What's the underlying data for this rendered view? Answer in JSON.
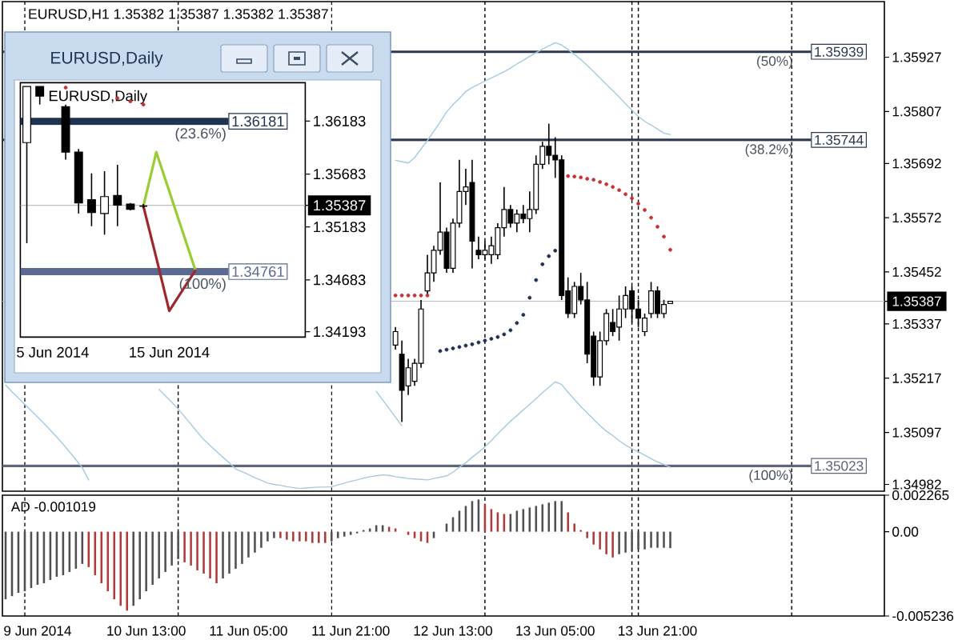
{
  "chart_data": [
    {
      "type": "candlestick",
      "title": "EURUSD,H1 1.35382 1.35387 1.35382 1.35387",
      "categories": [
        null,
        null,
        null,
        null,
        null,
        null,
        null,
        null,
        null,
        null,
        null,
        null,
        null,
        null,
        null,
        null,
        null,
        null,
        null,
        null,
        null,
        null,
        null,
        null,
        null,
        null,
        null,
        null,
        null,
        null,
        null,
        null,
        null,
        null,
        null,
        null,
        null,
        null,
        null,
        null,
        null,
        null,
        null,
        null,
        null,
        null,
        null,
        null,
        null,
        null,
        null,
        null,
        null,
        null,
        null,
        null,
        null,
        null,
        null,
        null,
        null,
        null,
        null,
        null,
        null,
        null,
        null,
        null,
        null,
        null,
        null,
        null,
        null,
        null,
        null,
        null,
        null,
        null,
        null,
        null,
        null,
        null,
        null,
        null,
        null,
        null,
        null,
        null,
        null,
        null,
        null,
        null,
        null,
        null,
        null,
        null,
        null,
        null,
        null,
        null,
        null,
        null,
        null,
        null,
        null,
        null,
        null,
        null,
        null,
        null,
        null,
        null,
        null,
        null,
        null,
        null,
        null,
        null,
        null,
        null,
        null,
        null,
        null,
        null,
        null,
        null,
        null,
        null,
        null,
        null,
        null,
        null,
        null,
        null,
        null,
        null,
        null,
        null
      ],
      "ohlc": [
        null,
        null,
        null,
        null,
        null,
        null,
        null,
        null,
        null,
        null,
        null,
        null,
        null,
        null,
        null,
        null,
        null,
        null,
        null,
        null,
        null,
        null,
        null,
        null,
        null,
        null,
        null,
        null,
        null,
        null,
        null,
        null,
        null,
        null,
        null,
        null,
        null,
        null,
        null,
        null,
        null,
        null,
        null,
        null,
        null,
        null,
        null,
        null,
        null,
        null,
        null,
        null,
        null,
        null,
        null,
        null,
        null,
        null,
        null,
        null,
        null,
        [
          1.3529,
          1.3533,
          1.3528,
          1.3532
        ],
        [
          1.3527,
          1.353,
          1.3512,
          1.3519
        ],
        [
          1.352,
          1.3526,
          1.3518,
          1.3524
        ],
        [
          1.3521,
          1.3526,
          1.352,
          1.3525
        ],
        [
          1.3525,
          1.3539,
          1.3524,
          1.3537
        ],
        [
          1.3541,
          1.3549,
          1.354,
          1.3545
        ],
        [
          1.3545,
          1.3551,
          1.3543,
          1.355
        ],
        [
          1.355,
          1.3565,
          1.3549,
          1.3554
        ],
        [
          1.3554,
          1.3555,
          1.3545,
          1.3546
        ],
        [
          1.3546,
          1.3557,
          1.3545,
          1.3556
        ],
        [
          1.3556,
          1.357,
          1.3555,
          1.3563
        ],
        [
          1.3563,
          1.3568,
          1.356,
          1.3564
        ],
        [
          1.3565,
          1.357,
          1.3546,
          1.3552
        ],
        [
          1.355,
          1.3553,
          1.3548,
          1.3549
        ],
        [
          1.3549,
          1.3552,
          1.3548,
          1.355
        ],
        [
          1.3549,
          1.3553,
          1.3547,
          1.3551
        ],
        [
          1.3549,
          1.3556,
          1.3548,
          1.3555
        ],
        [
          1.3555,
          1.3564,
          1.3553,
          1.3559
        ],
        [
          1.3559,
          1.356,
          1.3555,
          1.3556
        ],
        [
          1.3556,
          1.3559,
          1.3554,
          1.3558
        ],
        [
          1.3558,
          1.356,
          1.3556,
          1.3557
        ],
        [
          1.3557,
          1.3563,
          1.3554,
          1.3559
        ],
        [
          1.3559,
          1.3571,
          1.3558,
          1.3569
        ],
        [
          1.3569,
          1.3574,
          1.3568,
          1.3573
        ],
        [
          1.3573,
          1.3578,
          1.3569,
          1.3571
        ],
        [
          1.3571,
          1.3575,
          1.3566,
          1.357
        ],
        [
          1.357,
          1.3571,
          1.3539,
          1.354
        ],
        [
          1.3541,
          1.3544,
          1.3535,
          1.3536
        ],
        [
          1.3536,
          1.3543,
          1.3535,
          1.3542
        ],
        [
          1.3542,
          1.3545,
          1.3538,
          1.3539
        ],
        [
          1.3539,
          1.3543,
          1.3525,
          1.3527
        ],
        [
          1.3531,
          1.3532,
          1.352,
          1.3522
        ],
        [
          1.3522,
          1.3532,
          1.352,
          1.353
        ],
        [
          1.353,
          1.3537,
          1.3529,
          1.3536
        ],
        [
          1.3534,
          1.3537,
          1.3531,
          1.3532
        ],
        [
          1.3533,
          1.354,
          1.353,
          1.3537
        ],
        [
          1.3537,
          1.3542,
          1.3535,
          1.354
        ],
        [
          1.3541,
          1.3542,
          1.3534,
          1.3537
        ],
        [
          1.3537,
          1.3539,
          1.3533,
          1.3535
        ],
        [
          1.3532,
          1.3536,
          1.3531,
          1.3535
        ],
        [
          1.3536,
          1.3543,
          1.3535,
          1.3541
        ],
        [
          1.3541,
          1.3542,
          1.3535,
          1.3536
        ],
        [
          1.3536,
          1.3539,
          1.3535,
          1.3538
        ],
        [
          1.35382,
          1.35387,
          1.35382,
          1.35387
        ],
        null,
        null,
        null,
        null,
        null,
        null,
        null,
        null,
        null,
        null,
        null,
        null,
        null,
        null,
        null,
        null,
        null,
        null,
        null,
        null,
        null,
        null,
        null,
        null,
        null,
        null,
        null,
        null,
        null,
        null,
        null,
        null,
        null
      ],
      "ylim": [
        1.34967,
        1.3605
      ],
      "yticks": [
        1.35927,
        1.35807,
        1.35692,
        1.35572,
        1.35452,
        1.35387,
        1.35337,
        1.35217,
        1.35097,
        1.34982
      ],
      "tick_labels": "y",
      "series": [
        {
          "type": "line",
          "color": "#a6cbe0",
          "values": [
            null,
            null,
            null,
            null,
            null,
            null,
            null,
            null,
            null,
            null,
            null,
            null,
            null,
            null,
            null,
            null,
            null,
            null,
            null,
            null,
            null,
            null,
            null,
            null,
            null,
            null,
            null,
            null,
            null,
            null,
            null,
            null,
            null,
            null,
            null,
            null,
            null,
            null,
            null,
            null,
            null,
            null,
            null,
            null,
            null,
            null,
            null,
            null,
            null,
            null,
            null,
            null,
            null,
            null,
            null,
            null,
            null,
            null,
            null,
            null,
            null,
            1.35699,
            1.35696,
            1.35693,
            1.35705,
            1.35724,
            1.35743,
            1.35763,
            1.35784,
            1.35806,
            1.35822,
            1.35836,
            1.35851,
            1.3586,
            1.35867,
            1.35874,
            1.35881,
            1.35888,
            1.35895,
            1.35903,
            1.35912,
            1.3592,
            1.35929,
            1.35937,
            1.35945,
            1.35952,
            1.35959,
            1.35954,
            1.35944,
            1.35933,
            1.35922,
            1.35909,
            1.35895,
            1.35881,
            1.35867,
            1.35853,
            1.35839,
            1.35824,
            1.3581,
            1.35796,
            1.35785,
            1.35777,
            1.35768,
            1.35759,
            1.35756,
            null,
            null,
            null,
            null,
            null,
            null,
            null,
            null,
            null,
            null,
            null,
            null,
            null,
            null,
            null,
            null,
            null,
            null,
            null,
            null,
            null,
            null,
            null,
            null,
            null,
            null,
            null,
            null,
            null,
            null,
            null,
            null,
            null
          ]
        },
        {
          "type": "line",
          "color": "#a6cbe0",
          "values": [
            1.35202,
            1.35187,
            1.35173,
            1.35159,
            1.35145,
            1.35131,
            1.35117,
            1.35102,
            1.35087,
            1.35071,
            1.35054,
            1.35037,
            1.35019,
            1.34992,
            null,
            null,
            null,
            null,
            null,
            null,
            null,
            null,
            null,
            null,
            null,
            null,
            null,
            null,
            null,
            null,
            null,
            null,
            null,
            null,
            null,
            null,
            null,
            null,
            null,
            null,
            null,
            null,
            null,
            null,
            null,
            null,
            null,
            null,
            null,
            null,
            null,
            null,
            null,
            null,
            null,
            null,
            null,
            null,
            null,
            null,
            null,
            null,
            null,
            null,
            null,
            null,
            null,
            null,
            null,
            null,
            null,
            null,
            null,
            null,
            null,
            null,
            null,
            null,
            null,
            null,
            null,
            null,
            null,
            null,
            null,
            null,
            null,
            null,
            null,
            null,
            null,
            null,
            null,
            null,
            null,
            null,
            null,
            null,
            null,
            null,
            null,
            null,
            null,
            null,
            null,
            null,
            null,
            null,
            null,
            null,
            null,
            null,
            null,
            null,
            null,
            null,
            null,
            null,
            null,
            null,
            null,
            null,
            null,
            null,
            null,
            null,
            null,
            null,
            null,
            null,
            null,
            null,
            null,
            null,
            null,
            null,
            null,
            null
          ]
        },
        {
          "type": "line",
          "color": "#a6cbe0",
          "values": [
            null,
            null,
            null,
            null,
            null,
            null,
            null,
            null,
            null,
            null,
            null,
            null,
            null,
            null,
            null,
            null,
            null,
            null,
            null,
            null,
            null,
            null,
            null,
            null,
            1.35192,
            1.35178,
            1.35164,
            1.35149,
            1.35132,
            1.35115,
            1.35098,
            1.35081,
            1.35068,
            1.35055,
            1.35042,
            1.3503,
            1.35016,
            1.3501,
            1.35004,
            1.34997,
            1.34991,
            1.34985,
            1.34982,
            1.3498,
            1.34977,
            1.34975,
            1.34973,
            1.34974,
            1.34975,
            1.34976,
            1.34976,
            1.34977,
            1.34981,
            1.34985,
            1.34989,
            1.34992,
            1.34996,
            1.34999,
            1.35001,
            1.35003,
            1.35002,
            1.34999,
            1.34997,
            1.34995,
            1.34994,
            1.34993,
            1.34992,
            1.34995,
            1.34998,
            1.35001,
            1.35009,
            1.3502,
            1.3503,
            1.35042,
            1.35053,
            1.35065,
            1.35079,
            1.35094,
            1.35108,
            1.35122,
            1.35134,
            1.35147,
            1.35159,
            1.35172,
            1.35185,
            1.35197,
            1.35209,
            1.35203,
            1.35186,
            1.3517,
            1.35154,
            1.3514,
            1.35126,
            1.35112,
            1.351,
            1.3509,
            1.35079,
            1.35069,
            1.35061,
            1.35054,
            1.35047,
            1.35039,
            1.35032,
            1.35026,
            1.3502,
            null,
            null,
            null,
            null,
            null,
            null,
            null,
            null,
            null,
            null,
            null,
            null,
            null,
            null,
            null,
            null,
            null,
            null,
            null,
            null,
            null,
            null,
            null,
            null,
            null,
            null,
            null,
            null,
            null,
            null,
            null,
            null,
            null
          ]
        },
        {
          "type": "line",
          "color": "#a6cbe0",
          "values": [
            null,
            null,
            null,
            null,
            null,
            null,
            null,
            null,
            null,
            null,
            null,
            null,
            null,
            null,
            null,
            null,
            null,
            null,
            null,
            null,
            null,
            null,
            null,
            null,
            null,
            null,
            null,
            null,
            null,
            null,
            null,
            null,
            null,
            null,
            null,
            null,
            null,
            null,
            null,
            null,
            null,
            null,
            null,
            null,
            null,
            null,
            null,
            null,
            null,
            null,
            null,
            null,
            null,
            null,
            null,
            null,
            null,
            null,
            1.35188,
            1.35169,
            1.3515,
            1.35131,
            1.35112,
            null,
            null,
            null,
            null,
            null,
            null,
            null,
            null,
            null,
            null,
            null,
            null,
            null,
            null,
            null,
            null,
            null,
            null,
            null,
            null,
            null,
            null,
            null,
            null,
            null,
            null,
            null,
            null,
            null,
            null,
            null,
            null,
            null,
            null,
            null,
            null,
            null,
            null,
            null,
            null,
            null,
            null,
            null,
            null,
            null,
            null,
            null,
            null,
            null,
            null,
            null,
            null,
            null,
            null,
            null,
            null,
            null,
            null,
            null,
            null,
            null,
            null,
            null,
            null,
            null,
            null,
            null,
            null,
            null,
            null,
            null,
            null,
            null,
            null,
            null
          ]
        },
        {
          "type": "scatter",
          "marker": "circle",
          "color": "#c83232",
          "values": [
            null,
            null,
            null,
            null,
            null,
            null,
            null,
            null,
            null,
            null,
            null,
            null,
            null,
            null,
            null,
            null,
            null,
            null,
            null,
            null,
            null,
            null,
            null,
            null,
            null,
            null,
            null,
            null,
            null,
            null,
            null,
            null,
            null,
            null,
            null,
            null,
            null,
            null,
            null,
            null,
            null,
            null,
            null,
            null,
            null,
            null,
            null,
            null,
            null,
            null,
            null,
            null,
            null,
            null,
            null,
            null,
            null,
            null,
            null,
            null,
            null,
            1.354,
            1.354,
            1.354,
            1.354,
            1.354,
            1.354,
            null,
            null,
            null,
            null,
            null,
            null,
            null,
            null,
            null,
            null,
            null,
            null,
            null,
            null,
            null,
            null,
            null,
            null,
            null,
            null,
            null,
            1.35664,
            1.35663,
            1.35661,
            1.35658,
            1.35656,
            1.35651,
            1.35646,
            1.3564,
            1.35633,
            1.35624,
            1.35615,
            1.35603,
            1.35589,
            1.35572,
            1.35552,
            1.3553,
            1.35501,
            null,
            null,
            null,
            null,
            null,
            null,
            null,
            null,
            null,
            null,
            null,
            null,
            null,
            null,
            null,
            null,
            null,
            null,
            null,
            null,
            null,
            null,
            null,
            null,
            null,
            null,
            null,
            null,
            null,
            null,
            null,
            null,
            null
          ]
        },
        {
          "type": "scatter",
          "marker": "circle",
          "color": "#1f2f4f",
          "values": [
            null,
            null,
            null,
            null,
            null,
            null,
            null,
            null,
            null,
            null,
            null,
            null,
            null,
            null,
            null,
            null,
            null,
            null,
            null,
            null,
            null,
            null,
            null,
            null,
            null,
            null,
            null,
            null,
            null,
            null,
            null,
            null,
            null,
            null,
            null,
            null,
            null,
            null,
            null,
            null,
            null,
            null,
            null,
            null,
            null,
            null,
            null,
            null,
            null,
            null,
            null,
            null,
            null,
            null,
            null,
            null,
            null,
            null,
            null,
            null,
            null,
            null,
            null,
            null,
            null,
            null,
            null,
            null,
            1.35277,
            1.3528,
            1.35283,
            1.35286,
            1.35289,
            1.35292,
            1.35296,
            1.353,
            1.35304,
            1.35308,
            1.35314,
            1.35323,
            1.35339,
            1.35357,
            1.35395,
            1.35434,
            1.35469,
            1.35487,
            1.35499,
            null,
            null,
            null,
            null,
            null,
            null,
            null,
            null,
            null,
            null,
            null,
            null,
            null,
            null,
            null,
            null,
            null,
            null,
            null,
            null,
            null,
            null,
            null,
            null,
            null,
            null,
            null,
            null,
            null,
            null,
            null,
            null,
            null,
            null,
            null,
            null,
            null,
            null,
            null,
            null,
            null,
            null,
            null,
            null,
            null,
            null,
            null,
            null,
            null,
            null,
            null
          ]
        }
      ],
      "ref_lines": [
        {
          "axis": "y",
          "value": 1.35939,
          "label": "1.35939",
          "color": "#2b3a4e"
        },
        {
          "axis": "y",
          "value": 1.35744,
          "label": "1.35744",
          "color": "#2b3a4e"
        },
        {
          "axis": "y",
          "value": 1.35023,
          "label": "1.35023",
          "color": "#5d6677"
        },
        {
          "axis": "y",
          "value": 1.35387,
          "color": "#c0c0c0"
        }
      ],
      "annotations": [
        "(50%)",
        "(38.2%)",
        "(100%)"
      ]
    },
    {
      "type": "bar",
      "title": "AD -0.001019",
      "categories": [
        null,
        null,
        null,
        null,
        null,
        "9 Jun 2014",
        null,
        null,
        null,
        null,
        null,
        null,
        null,
        null,
        null,
        null,
        null,
        null,
        null,
        null,
        null,
        null,
        "10 Jun 13:00",
        null,
        null,
        null,
        null,
        null,
        null,
        null,
        null,
        null,
        null,
        null,
        null,
        null,
        null,
        null,
        "11 Jun 05:00",
        null,
        null,
        null,
        null,
        null,
        null,
        null,
        null,
        null,
        null,
        null,
        null,
        null,
        null,
        null,
        "11 Jun 21:00",
        null,
        null,
        null,
        null,
        null,
        null,
        null,
        null,
        null,
        null,
        null,
        null,
        null,
        null,
        null,
        "12 Jun 13:00",
        null,
        null,
        null,
        null,
        null,
        null,
        null,
        null,
        null,
        null,
        null,
        null,
        null,
        null,
        null,
        "13 Jun 05:00",
        null,
        null,
        null,
        null,
        null,
        null,
        null,
        null,
        null,
        null,
        null,
        null,
        null,
        null,
        null,
        "13 Jun 21:00",
        null,
        null,
        null,
        null,
        null,
        null,
        null,
        null,
        null,
        null,
        null,
        null,
        null,
        null,
        null,
        null,
        null,
        null,
        null,
        null,
        null,
        null,
        null,
        null,
        null,
        null,
        null,
        null,
        null,
        null,
        null,
        null,
        null,
        null,
        null
      ],
      "values": [
        -0.0042,
        -0.004,
        -0.0038,
        -0.0037,
        -0.0035,
        -0.0033,
        -0.0032,
        -0.003,
        -0.0028,
        -0.0027,
        -0.0025,
        -0.0023,
        -0.002,
        -0.0022,
        -0.0027,
        -0.0032,
        -0.0037,
        -0.0042,
        -0.0046,
        -0.0049,
        -0.0046,
        -0.0042,
        -0.0037,
        -0.0033,
        -0.0029,
        -0.0025,
        -0.0021,
        -0.0017,
        -0.0019,
        -0.0021,
        -0.0024,
        -0.0026,
        -0.0029,
        -0.0032,
        -0.0029,
        -0.0026,
        -0.0023,
        -0.002,
        -0.0016,
        -0.0013,
        -0.001,
        -0.0006,
        -0.0004,
        -0.0004,
        -0.0005,
        -0.0006,
        -0.0006,
        -0.0006,
        -0.0007,
        -0.0007,
        -0.0007,
        -0.0006,
        -0.0004,
        -0.0003,
        -0.0002,
        -0.0001,
        0.0001,
        0.0002,
        0.0004,
        0.0004,
        0.0003,
        0.0002,
        0,
        -0.0002,
        -0.0004,
        -0.0006,
        -0.0007,
        -0.0004,
        0,
        0.0005,
        0.0009,
        0.0013,
        0.0016,
        0.0019,
        0.002,
        0.0017,
        0.0014,
        0.0012,
        0.0011,
        0.0011,
        0.0013,
        0.0014,
        0.0015,
        0.0016,
        0.0017,
        0.0018,
        0.0019,
        0.0019,
        0.0012,
        0.0005,
        0.0001,
        -0.0004,
        -0.0008,
        -0.0011,
        -0.0014,
        -0.0016,
        -0.0014,
        -0.0013,
        -0.0012,
        -0.0011,
        -0.0011,
        -0.001,
        -0.001,
        -0.001,
        -0.001019,
        null,
        null,
        null,
        null,
        null,
        null,
        null,
        null,
        null,
        null,
        null,
        null,
        null,
        null,
        null,
        null,
        null,
        null,
        null,
        null,
        null,
        null,
        null,
        null,
        null,
        null,
        null,
        null,
        null,
        null,
        null,
        null,
        null
      ],
      "colors": [
        "#505050",
        "#505050",
        "#505050",
        "#505050",
        "#505050",
        "#505050",
        "#505050",
        "#505050",
        "#505050",
        "#505050",
        "#505050",
        "#505050",
        "#505050",
        "#b03a3a",
        "#b03a3a",
        "#b03a3a",
        "#b03a3a",
        "#b03a3a",
        "#b03a3a",
        "#b03a3a",
        "#505050",
        "#505050",
        "#505050",
        "#505050",
        "#505050",
        "#505050",
        "#505050",
        "#505050",
        "#b03a3a",
        "#b03a3a",
        "#b03a3a",
        "#b03a3a",
        "#b03a3a",
        "#b03a3a",
        "#505050",
        "#505050",
        "#505050",
        "#505050",
        "#505050",
        "#505050",
        "#505050",
        "#505050",
        "#505050",
        "#b03a3a",
        "#b03a3a",
        "#b03a3a",
        "#b03a3a",
        "#b03a3a",
        "#b03a3a",
        "#b03a3a",
        "#b03a3a",
        "#505050",
        "#505050",
        "#505050",
        "#505050",
        "#505050",
        "#505050",
        "#505050",
        "#505050",
        "#505050",
        "#b03a3a",
        "#b03a3a",
        "#b03a3a",
        "#b03a3a",
        "#b03a3a",
        "#b03a3a",
        "#b03a3a",
        "#505050",
        "#505050",
        "#505050",
        "#505050",
        "#505050",
        "#505050",
        "#505050",
        "#505050",
        "#b03a3a",
        "#b03a3a",
        "#b03a3a",
        "#b03a3a",
        "#505050",
        "#505050",
        "#505050",
        "#505050",
        "#505050",
        "#505050",
        "#505050",
        "#505050",
        "#505050",
        "#b03a3a",
        "#b03a3a",
        "#b03a3a",
        "#b03a3a",
        "#b03a3a",
        "#b03a3a",
        "#b03a3a",
        "#b03a3a",
        "#505050",
        "#505050",
        "#505050",
        "#505050",
        "#505050",
        "#505050",
        "#505050",
        "#505050",
        "#505050",
        null,
        null,
        null,
        null,
        null,
        null,
        null,
        null,
        null,
        null,
        null,
        null,
        null,
        null,
        null,
        null,
        null,
        null,
        null,
        null,
        null,
        null,
        null,
        null,
        null,
        null,
        null,
        null,
        null,
        null,
        null,
        null,
        null
      ],
      "ylim": [
        -0.005236,
        0.002265
      ],
      "yticks": [
        0.002265,
        {
          "value": 0,
          "label": "0.00"
        },
        -0.005236
      ]
    },
    {
      "type": "candlestick",
      "title": "EURUSD,Daily",
      "subtitle": "EURUSD,Daily",
      "categories": [
        null,
        null,
        "5 Jun 2014",
        null,
        null,
        null,
        null,
        null,
        null,
        null,
        null,
        "15 Jun 2014",
        null,
        null,
        null,
        null,
        null,
        null,
        null,
        null,
        null,
        null
      ],
      "ohlc": [
        [
          1.3598,
          1.3651,
          1.3503,
          1.3651
        ],
        [
          1.3651,
          1.3651,
          1.3634,
          1.3642
        ],
        null,
        [
          1.3632,
          1.3634,
          1.3582,
          1.3589
        ],
        [
          1.3589,
          1.3592,
          1.3531,
          1.3541
        ],
        [
          1.3544,
          1.3569,
          1.3519,
          1.3532
        ],
        [
          1.3531,
          1.3571,
          1.3511,
          1.3547
        ],
        [
          1.3548,
          1.3577,
          1.3519,
          1.3539
        ],
        [
          1.354,
          1.3541,
          1.3534,
          1.3535
        ],
        [
          1.3538,
          1.354,
          1.3536,
          1.3538
        ],
        null,
        null,
        null,
        null,
        null,
        null,
        null,
        null,
        null,
        null,
        null,
        null
      ],
      "ylim": [
        1.34142,
        1.36546
      ],
      "yticks": [
        1.36183,
        1.35683,
        1.35387,
        1.35183,
        1.34683,
        1.34193
      ],
      "series": [
        {
          "type": "line",
          "color": "#9acd32",
          "values": [
            null,
            null,
            null,
            null,
            null,
            null,
            null,
            null,
            null,
            1.3538,
            1.3589,
            1.3552,
            1.3515,
            1.3478,
            null,
            null,
            null,
            null,
            null,
            null,
            null,
            null
          ]
        },
        {
          "type": "line",
          "color": "#a0282d",
          "values": [
            null,
            null,
            null,
            null,
            null,
            null,
            null,
            null,
            null,
            1.3538,
            1.3489,
            1.3439,
            1.3458,
            1.3477,
            null,
            null,
            null,
            null,
            null,
            null,
            null,
            null
          ]
        },
        {
          "type": "scatter",
          "marker": "circle",
          "color": "#c83232",
          "values": [
            null,
            null,
            null,
            1.365,
            null,
            null,
            null,
            1.364,
            1.3637,
            1.3634,
            null,
            null,
            null,
            null,
            null,
            null,
            null,
            null,
            null,
            null,
            null,
            null
          ]
        }
      ],
      "ref_lines": [
        {
          "axis": "y",
          "value": 1.36181,
          "label": "1.36181",
          "color": "#1f344f"
        },
        {
          "axis": "y",
          "value": 1.34761,
          "label": "1.34761",
          "color": "#5a6a93"
        },
        {
          "axis": "y",
          "value": 1.35387,
          "color": "#c0c0c0"
        }
      ],
      "annotations": [
        "(23.6%)",
        "(100%)"
      ]
    }
  ]
}
